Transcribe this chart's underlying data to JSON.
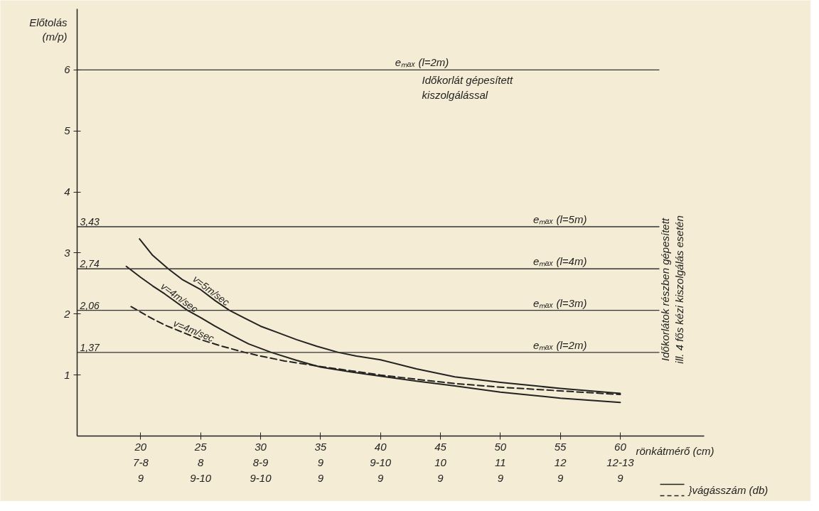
{
  "chart_data": {
    "type": "line",
    "xlabel": "rönkátmérő (cm)",
    "ylabel": "Előtolás\n(m/p)",
    "xlim": [
      14.7,
      67
    ],
    "ylim": [
      0,
      7
    ],
    "xticks": [
      20,
      25,
      30,
      35,
      40,
      45,
      50,
      55,
      60
    ],
    "yticks": [
      1,
      2,
      3,
      4,
      5,
      6
    ],
    "grid": false,
    "legend": false,
    "series": [
      {
        "name": "v=5m/sec",
        "color": "#222222",
        "line_style": "solid",
        "x": [
          19.9,
          21,
          22.3,
          23.5,
          25,
          26.2,
          27.4,
          28.7,
          30,
          31.5,
          33,
          34.7,
          36.5,
          38,
          40,
          43,
          46.2,
          50,
          55,
          60
        ],
        "values": [
          3.23,
          2.96,
          2.74,
          2.56,
          2.4,
          2.22,
          2.06,
          1.93,
          1.8,
          1.69,
          1.58,
          1.47,
          1.37,
          1.31,
          1.25,
          1.1,
          0.97,
          0.88,
          0.78,
          0.7
        ]
      },
      {
        "name": "v=4m/sec",
        "color": "#222222",
        "line_style": "solid",
        "x": [
          18.8,
          20,
          21,
          22,
          23.9,
          25,
          26.2,
          27.5,
          29,
          30.9,
          33,
          35,
          37.5,
          40,
          43,
          46.2,
          50,
          55,
          60
        ],
        "values": [
          2.78,
          2.6,
          2.46,
          2.33,
          2.06,
          1.94,
          1.8,
          1.66,
          1.51,
          1.37,
          1.24,
          1.13,
          1.05,
          0.98,
          0.9,
          0.82,
          0.72,
          0.62,
          0.55
        ]
      },
      {
        "name": "v=4m/sec",
        "color": "#222222",
        "line_style": "dashed",
        "x": [
          19.2,
          20,
          21,
          22,
          23.5,
          25,
          26.8,
          28.7,
          30,
          32,
          35,
          37.5,
          40,
          43,
          46.2,
          50,
          55,
          60
        ],
        "values": [
          2.12,
          2.03,
          1.92,
          1.82,
          1.7,
          1.58,
          1.47,
          1.37,
          1.31,
          1.23,
          1.14,
          1.07,
          1.0,
          0.93,
          0.86,
          0.8,
          0.74,
          0.68
        ]
      }
    ],
    "ref_lines": [
      {
        "axis": "y",
        "value": 6,
        "color": "#333333"
      },
      {
        "axis": "y",
        "value": 3.43,
        "label": "3,43",
        "color": "#333333"
      },
      {
        "axis": "y",
        "value": 2.74,
        "label": "2,74",
        "color": "#333333"
      },
      {
        "axis": "y",
        "value": 2.06,
        "label": "2,06",
        "color": "#333333"
      },
      {
        "axis": "y",
        "value": 1.37,
        "label": "1,37",
        "color": "#333333"
      }
    ],
    "annotations": [
      "eₘₐₓ (l=2m)",
      "eₘₐₓ (l=5m)",
      "eₘₐₓ (l=4m)",
      "eₘₐₓ (l=3m)",
      "eₘₐₓ (l=2m)",
      "Időkorlát gépesített\nkiszolgálással",
      "Időkorlátok részben gépesített\nill. 4 fős kézi kiszolgálás esetén",
      "}vágásszám (db)",
      "7-8",
      "8",
      "8-9",
      "9",
      "9-10",
      "10",
      "11",
      "12",
      "12-13",
      "9",
      "9-10",
      "9-10",
      "9",
      "9",
      "9",
      "9",
      "9",
      "9"
    ]
  }
}
